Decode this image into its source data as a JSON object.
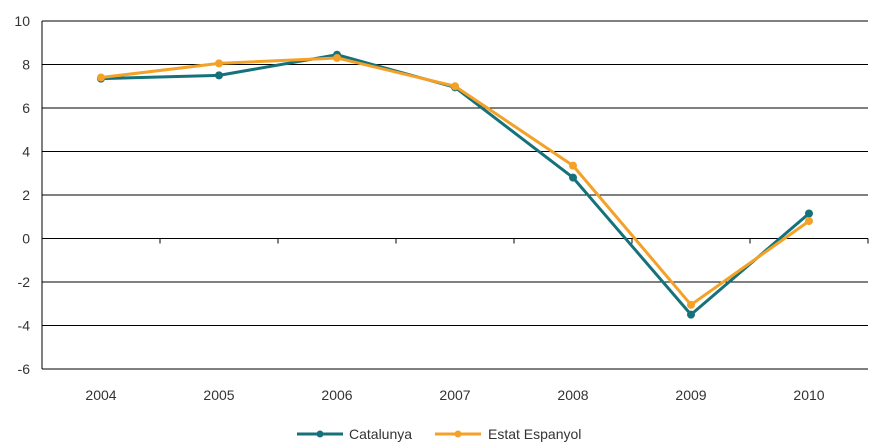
{
  "chart_data": {
    "type": "line",
    "title": "",
    "xlabel": "",
    "ylabel": "",
    "categories": [
      "2004",
      "2005",
      "2006",
      "2007",
      "2008",
      "2009",
      "2010"
    ],
    "ylim": [
      -6,
      10
    ],
    "yticks": [
      10,
      8,
      6,
      4,
      2,
      0,
      -2,
      -4,
      -6
    ],
    "y_tick_labels": [
      "10",
      "8",
      "6",
      "4",
      "2",
      "0",
      "-2",
      "-4",
      "-6"
    ],
    "grid": "horizontal",
    "legend_position": "bottom",
    "series": [
      {
        "name": "Catalunya",
        "color": "#16727a",
        "values": [
          7.35,
          7.5,
          8.45,
          6.95,
          2.8,
          -3.5,
          1.15
        ]
      },
      {
        "name": "Estat Espanyol",
        "color": "#f4a128",
        "values": [
          7.4,
          8.05,
          8.3,
          7.0,
          3.35,
          -3.05,
          0.8
        ]
      }
    ]
  }
}
